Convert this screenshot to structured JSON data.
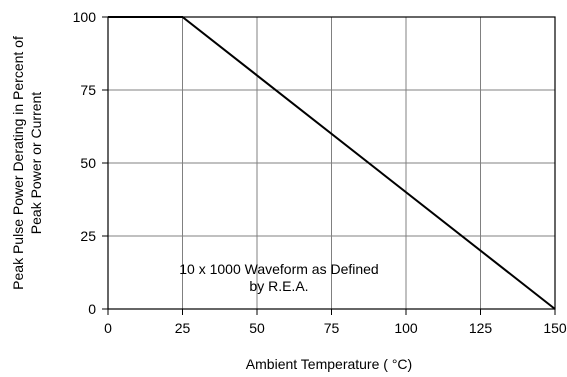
{
  "chart_data": {
    "type": "line",
    "xlabel": "Ambient Temperature ( °C)",
    "ylabel": [
      "Peak Pulse Power Derating in Percent of",
      "Peak Power or Current"
    ],
    "xlim": [
      0,
      150
    ],
    "ylim": [
      0,
      100
    ],
    "x_ticks": [
      0,
      25,
      50,
      75,
      100,
      125,
      150
    ],
    "y_ticks": [
      0,
      25,
      50,
      75,
      100
    ],
    "grid": true,
    "series": [
      {
        "x": [
          0,
          25,
          150
        ],
        "y": [
          100,
          100,
          0
        ]
      }
    ],
    "annotation": [
      "10 x 1000 Waveform as Defined",
      "by R.E.A."
    ],
    "colors": {
      "line": "#000000",
      "grid": "#808080",
      "frame": "#000000"
    }
  }
}
